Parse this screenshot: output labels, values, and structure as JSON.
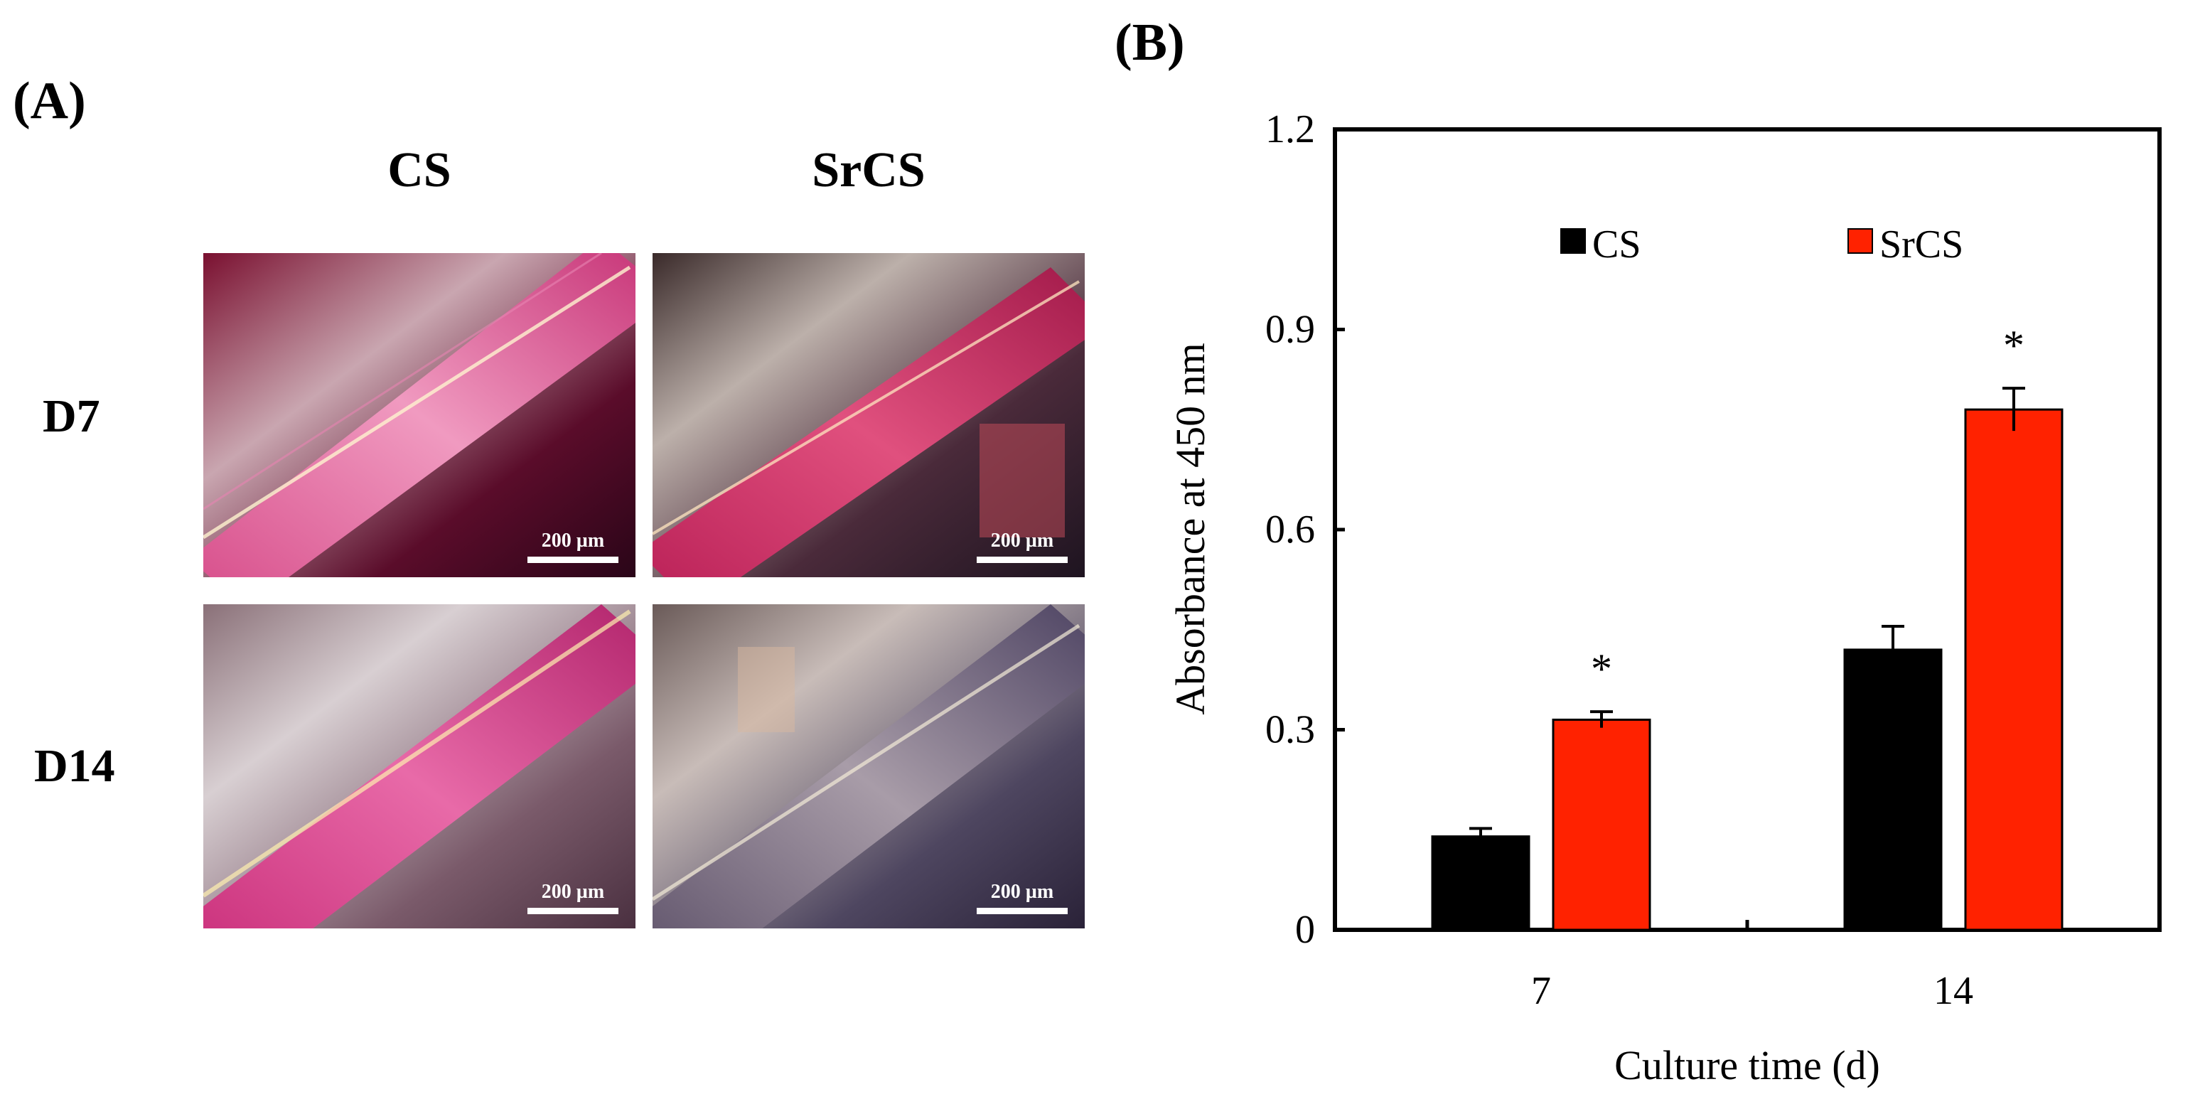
{
  "panels": {
    "a_label": "(A)",
    "b_label": "(B)"
  },
  "micrographs": {
    "col_cs": "CS",
    "col_srcs": "SrCS",
    "row_d7": "D7",
    "row_d14": "D14",
    "scale_bar_label": "200 µm"
  },
  "colors": {
    "cs": "#000000",
    "srcs": "#ff2200"
  },
  "chart_data": {
    "type": "bar",
    "title": "",
    "xlabel": "Culture time (d)",
    "ylabel": "Absorbance at 450 nm",
    "categories": [
      "7",
      "14"
    ],
    "ylim": [
      0,
      1.2
    ],
    "yticks": [
      "0",
      "0.3",
      "0.6",
      "0.9",
      "1.2"
    ],
    "ytick_values": [
      0,
      0.3,
      0.6,
      0.9,
      1.2
    ],
    "legend_position": "top",
    "series": [
      {
        "name": "CS",
        "values": [
          0.14,
          0.42
        ],
        "errors": [
          0.012,
          0.035
        ],
        "significance": [
          "",
          ""
        ]
      },
      {
        "name": "SrCS",
        "values": [
          0.315,
          0.78
        ],
        "errors": [
          0.012,
          0.032
        ],
        "significance": [
          "*",
          "*"
        ]
      }
    ]
  }
}
